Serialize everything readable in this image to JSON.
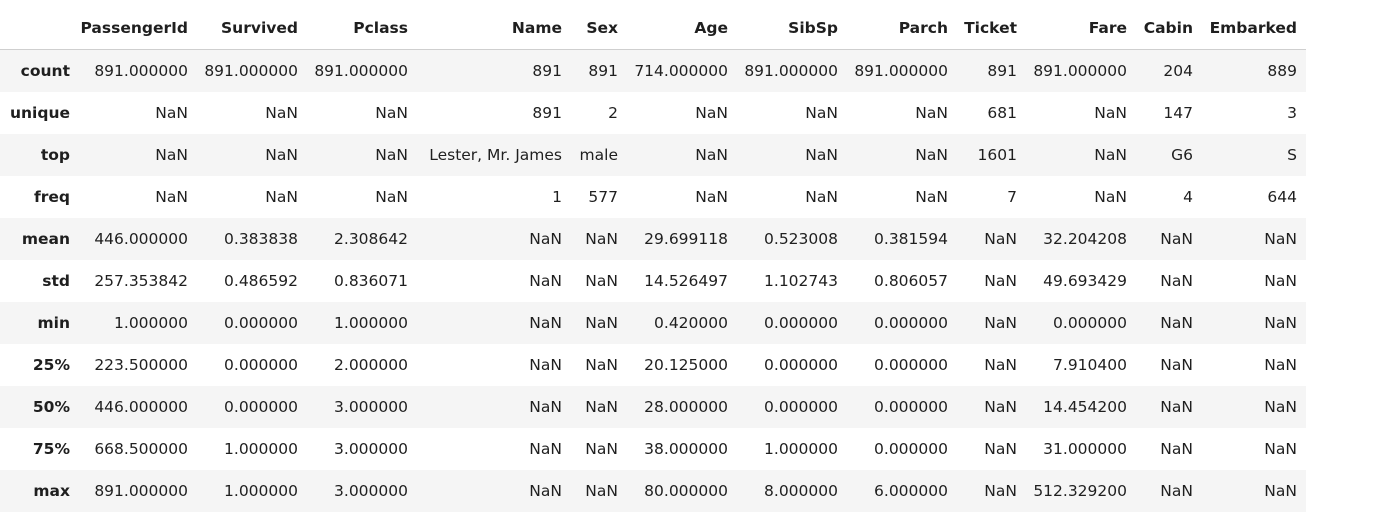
{
  "table": {
    "columns": [
      "",
      "PassengerId",
      "Survived",
      "Pclass",
      "Name",
      "Sex",
      "Age",
      "SibSp",
      "Parch",
      "Ticket",
      "Fare",
      "Cabin",
      "Embarked"
    ],
    "rows": [
      {
        "label": "count",
        "cells": [
          "891.000000",
          "891.000000",
          "891.000000",
          "891",
          "891",
          "714.000000",
          "891.000000",
          "891.000000",
          "891",
          "891.000000",
          "204",
          "889"
        ]
      },
      {
        "label": "unique",
        "cells": [
          "NaN",
          "NaN",
          "NaN",
          "891",
          "2",
          "NaN",
          "NaN",
          "NaN",
          "681",
          "NaN",
          "147",
          "3"
        ]
      },
      {
        "label": "top",
        "cells": [
          "NaN",
          "NaN",
          "NaN",
          "Lester, Mr. James",
          "male",
          "NaN",
          "NaN",
          "NaN",
          "1601",
          "NaN",
          "G6",
          "S"
        ]
      },
      {
        "label": "freq",
        "cells": [
          "NaN",
          "NaN",
          "NaN",
          "1",
          "577",
          "NaN",
          "NaN",
          "NaN",
          "7",
          "NaN",
          "4",
          "644"
        ]
      },
      {
        "label": "mean",
        "cells": [
          "446.000000",
          "0.383838",
          "2.308642",
          "NaN",
          "NaN",
          "29.699118",
          "0.523008",
          "0.381594",
          "NaN",
          "32.204208",
          "NaN",
          "NaN"
        ]
      },
      {
        "label": "std",
        "cells": [
          "257.353842",
          "0.486592",
          "0.836071",
          "NaN",
          "NaN",
          "14.526497",
          "1.102743",
          "0.806057",
          "NaN",
          "49.693429",
          "NaN",
          "NaN"
        ]
      },
      {
        "label": "min",
        "cells": [
          "1.000000",
          "0.000000",
          "1.000000",
          "NaN",
          "NaN",
          "0.420000",
          "0.000000",
          "0.000000",
          "NaN",
          "0.000000",
          "NaN",
          "NaN"
        ]
      },
      {
        "label": "25%",
        "cells": [
          "223.500000",
          "0.000000",
          "2.000000",
          "NaN",
          "NaN",
          "20.125000",
          "0.000000",
          "0.000000",
          "NaN",
          "7.910400",
          "NaN",
          "NaN"
        ]
      },
      {
        "label": "50%",
        "cells": [
          "446.000000",
          "0.000000",
          "3.000000",
          "NaN",
          "NaN",
          "28.000000",
          "0.000000",
          "0.000000",
          "NaN",
          "14.454200",
          "NaN",
          "NaN"
        ]
      },
      {
        "label": "75%",
        "cells": [
          "668.500000",
          "1.000000",
          "3.000000",
          "NaN",
          "NaN",
          "38.000000",
          "1.000000",
          "0.000000",
          "NaN",
          "31.000000",
          "NaN",
          "NaN"
        ]
      },
      {
        "label": "max",
        "cells": [
          "891.000000",
          "1.000000",
          "3.000000",
          "NaN",
          "NaN",
          "80.000000",
          "8.000000",
          "6.000000",
          "NaN",
          "512.329200",
          "NaN",
          "NaN"
        ]
      }
    ]
  },
  "colors": {
    "stripe": "#f5f5f5",
    "header_border": "#cfcfcf",
    "text": "#1f1f1f"
  }
}
